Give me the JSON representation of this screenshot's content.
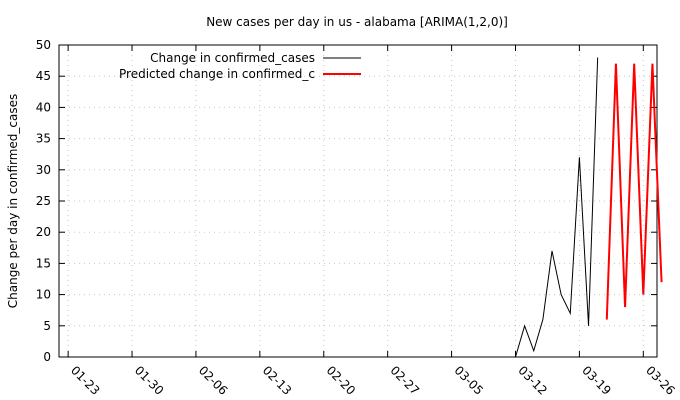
{
  "chart_data": {
    "type": "line",
    "title": "New cases per day in us - alabama [ARIMA(1,2,0)]",
    "xlabel": "",
    "ylabel": "Change per day in confirmed_cases",
    "x_tick_labels": [
      "01-23",
      "01-30",
      "02-06",
      "02-13",
      "02-20",
      "02-27",
      "03-05",
      "03-12",
      "03-19",
      "03-26"
    ],
    "x_tick_days": [
      1,
      8,
      15,
      22,
      29,
      36,
      43,
      50,
      57,
      64
    ],
    "xlim": [
      0,
      65.5
    ],
    "ylim": [
      0,
      50
    ],
    "y_ticks": [
      0,
      5,
      10,
      15,
      20,
      25,
      30,
      35,
      40,
      45,
      50
    ],
    "grid": true,
    "legend_position": "top-left",
    "x_day_origin": "01-22",
    "series": [
      {
        "name": "Change in confirmed_cases",
        "color": "#000000",
        "x_days": [
          50,
          51,
          52,
          53,
          54,
          55,
          56,
          57,
          58,
          59
        ],
        "values": [
          0,
          5,
          1,
          6,
          17,
          10,
          7,
          32,
          5,
          48
        ]
      },
      {
        "name": "Predicted change in confirmed_c",
        "color": "#ff0000",
        "x_days": [
          60,
          61,
          62,
          63,
          64,
          65,
          66
        ],
        "values": [
          6,
          47,
          8,
          47,
          10,
          47,
          12
        ]
      }
    ]
  }
}
